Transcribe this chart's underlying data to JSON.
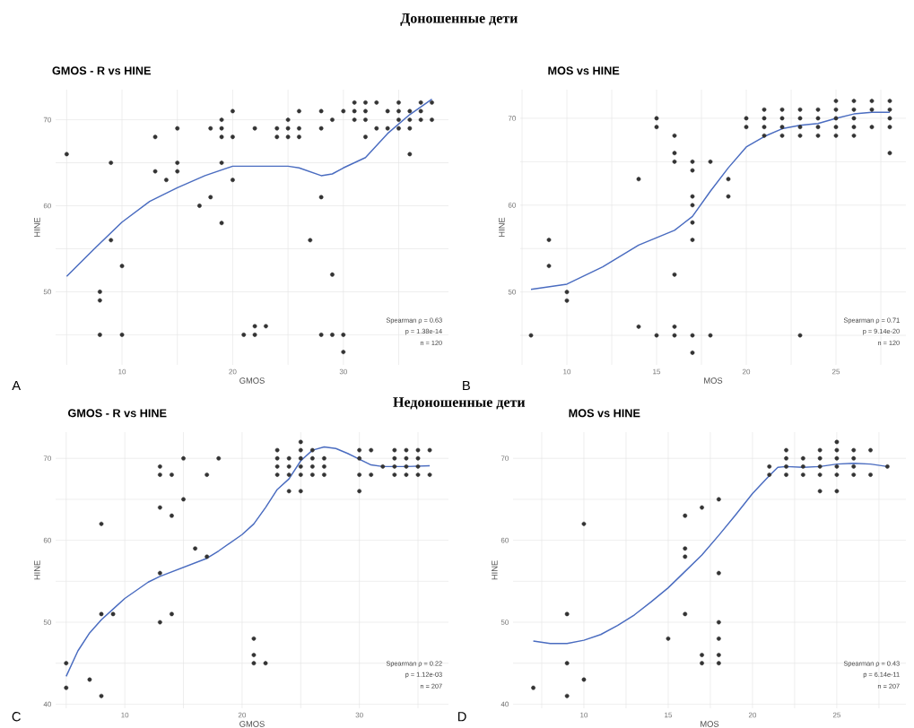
{
  "chart_data": [
    {
      "type": "scatter",
      "title": "GMOS - R    vs HINE",
      "xlabel": "GMOS",
      "ylabel": "HINE",
      "xlim": [
        4,
        39.5
      ],
      "ylim": [
        41.5,
        73.5
      ],
      "xticks": [
        {
          "value": 5,
          "label": null
        },
        10,
        {
          "value": 15,
          "label": null
        },
        20,
        {
          "value": 25,
          "label": null
        },
        30,
        {
          "value": 35,
          "label": null
        }
      ],
      "yticks": [
        {
          "value": 45,
          "label": null
        },
        50,
        {
          "value": 55,
          "label": null
        },
        60,
        {
          "value": 65,
          "label": null
        },
        70
      ],
      "grid": true,
      "annotations": [
        "A",
        "Spearman ρ = 0.63",
        "p = 1.38e-14",
        "n = 120",
        "Доношенные дети"
      ],
      "series": [
        {
          "marker": "circle",
          "color": "#333333",
          "x": [
            5,
            9,
            9,
            8,
            8,
            8,
            10,
            10,
            13,
            13,
            14,
            15,
            15,
            15,
            17,
            18,
            18,
            19,
            19,
            19,
            19,
            19,
            20,
            20,
            20,
            21,
            22,
            22,
            22,
            23,
            24,
            24,
            25,
            25,
            25,
            26,
            26,
            26,
            27,
            28,
            28,
            28,
            28,
            29,
            29,
            29,
            30,
            30,
            30,
            31,
            31,
            31,
            32,
            32,
            32,
            32,
            33,
            33,
            34,
            34,
            35,
            35,
            35,
            35,
            36,
            36,
            36,
            36,
            37,
            37,
            37,
            38,
            38
          ],
          "values": [
            66,
            65,
            56,
            50,
            49,
            45,
            53,
            45,
            68,
            64,
            63,
            69,
            65,
            64,
            60,
            69,
            61,
            70,
            69,
            68,
            65,
            58,
            71,
            68,
            63,
            45,
            69,
            46,
            45,
            46,
            69,
            68,
            70,
            69,
            68,
            71,
            69,
            68,
            56,
            71,
            69,
            61,
            45,
            70,
            52,
            45,
            71,
            45,
            43,
            72,
            71,
            70,
            72,
            71,
            70,
            68,
            72,
            69,
            71,
            69,
            72,
            71,
            70,
            69,
            71,
            70,
            69,
            66,
            72,
            71,
            70,
            72,
            70
          ]
        },
        {
          "type": "line",
          "marker": "none",
          "line_style": "solid",
          "color": "#4a6cc0",
          "x": [
            5,
            7.5,
            10,
            12.5,
            15,
            17.5,
            20,
            25,
            26,
            28,
            29,
            30,
            32,
            34,
            36,
            38
          ],
          "values": [
            51.8,
            55,
            58.1,
            60.5,
            62.1,
            63.5,
            64.6,
            64.6,
            64.4,
            63.5,
            63.7,
            64.4,
            65.6,
            68.4,
            70.6,
            72.4
          ]
        }
      ]
    },
    {
      "type": "scatter",
      "title": "MOS vs HINE",
      "xlabel": "MOS",
      "ylabel": "HINE",
      "xlim": [
        7.4,
        28.9
      ],
      "ylim": [
        41.6,
        73.3
      ],
      "xticks": [
        {
          "value": 7.5,
          "label": null
        },
        10,
        {
          "value": 12.5,
          "label": null
        },
        15,
        {
          "value": 17.5,
          "label": null
        },
        20,
        {
          "value": 22.5,
          "label": null
        },
        25,
        {
          "value": 27.5,
          "label": null
        }
      ],
      "yticks": [
        {
          "value": 45,
          "label": null
        },
        50,
        {
          "value": 55,
          "label": null
        },
        60,
        {
          "value": 65,
          "label": null
        },
        70
      ],
      "grid": true,
      "annotations": [
        "B",
        "Spearman ρ = 0.71",
        "p = 9.14e-20",
        "n = 120"
      ],
      "series": [
        {
          "marker": "circle",
          "color": "#333333",
          "x": [
            8,
            9,
            9,
            10,
            10,
            14,
            14,
            15,
            15,
            15,
            16,
            16,
            16,
            16,
            16,
            16,
            17,
            17,
            17,
            17,
            17,
            17,
            17,
            17,
            18,
            18,
            19,
            19,
            20,
            20,
            21,
            21,
            21,
            21,
            22,
            22,
            22,
            22,
            23,
            23,
            23,
            23,
            23,
            24,
            24,
            24,
            24,
            25,
            25,
            25,
            25,
            25,
            26,
            26,
            26,
            26,
            26,
            27,
            27,
            27,
            28,
            28,
            28,
            28,
            28
          ],
          "values": [
            45,
            56,
            53,
            50,
            49,
            63,
            46,
            70,
            69,
            45,
            68,
            66,
            65,
            52,
            46,
            45,
            65,
            64,
            61,
            60,
            58,
            56,
            45,
            43,
            65,
            45,
            63,
            61,
            70,
            69,
            71,
            70,
            69,
            68,
            71,
            70,
            69,
            68,
            71,
            70,
            69,
            68,
            45,
            71,
            70,
            69,
            68,
            72,
            71,
            70,
            69,
            68,
            72,
            71,
            70,
            69,
            68,
            72,
            71,
            69,
            72,
            71,
            70,
            69,
            66
          ]
        },
        {
          "type": "line",
          "marker": "none",
          "line_style": "solid",
          "color": "#4a6cc0",
          "x": [
            8,
            10,
            12,
            14,
            16,
            17,
            18,
            19,
            20,
            21,
            22,
            23,
            24,
            25,
            26,
            27,
            28
          ],
          "values": [
            50.3,
            50.9,
            52.9,
            55.4,
            57.1,
            58.7,
            61.6,
            64.3,
            66.7,
            67.9,
            68.8,
            69.2,
            69.4,
            70.0,
            70.5,
            70.7,
            70.7
          ]
        }
      ]
    },
    {
      "type": "scatter",
      "title": "GMOS - R    vs HINE",
      "xlabel": "GMOS",
      "ylabel": "HINE",
      "xlim": [
        4.1,
        37.6
      ],
      "ylim": [
        39.5,
        73.2
      ],
      "xticks": [
        {
          "value": 5,
          "label": null
        },
        10,
        {
          "value": 15,
          "label": null
        },
        20,
        {
          "value": 25,
          "label": null
        },
        30,
        {
          "value": 35,
          "label": null
        }
      ],
      "yticks": [
        40,
        {
          "value": 45,
          "label": null
        },
        50,
        {
          "value": 55,
          "label": null
        },
        60,
        {
          "value": 65,
          "label": null
        },
        70
      ],
      "grid": true,
      "annotations": [
        "C",
        "Spearman ρ = 0.22",
        "p = 1.12e-03",
        "n = 207",
        "Недоношенные дети"
      ],
      "series": [
        {
          "marker": "circle",
          "color": "#333333",
          "x": [
            5,
            5,
            7,
            8,
            8,
            8,
            9,
            13,
            13,
            13,
            13,
            13,
            14,
            14,
            14,
            15,
            15,
            16,
            17,
            17,
            18,
            21,
            21,
            21,
            22,
            23,
            23,
            23,
            23,
            24,
            24,
            24,
            24,
            25,
            25,
            25,
            25,
            25,
            25,
            26,
            26,
            26,
            26,
            27,
            27,
            27,
            30,
            30,
            30,
            30,
            31,
            31,
            32,
            33,
            33,
            33,
            33,
            34,
            34,
            34,
            34,
            35,
            35,
            35,
            35,
            36,
            36
          ],
          "values": [
            45,
            42,
            43,
            62,
            51,
            41,
            51,
            69,
            68,
            64,
            56,
            50,
            68,
            63,
            51,
            70,
            65,
            59,
            68,
            58,
            70,
            48,
            46,
            45,
            45,
            71,
            70,
            69,
            68,
            70,
            69,
            68,
            66,
            72,
            71,
            70,
            69,
            68,
            66,
            71,
            70,
            69,
            68,
            70,
            69,
            68,
            71,
            70,
            68,
            66,
            71,
            68,
            69,
            71,
            70,
            69,
            68,
            71,
            70,
            69,
            68,
            71,
            70,
            69,
            68,
            71,
            68
          ]
        },
        {
          "type": "line",
          "marker": "none",
          "line_style": "solid",
          "color": "#4a6cc0",
          "x": [
            5,
            6,
            7,
            8,
            9,
            10,
            12,
            13,
            15,
            17,
            18,
            20,
            21,
            22,
            23,
            24,
            25,
            26,
            27,
            28,
            29,
            30,
            31,
            32,
            34,
            36
          ],
          "values": [
            43.4,
            46.5,
            48.7,
            50.3,
            51.6,
            52.9,
            54.9,
            55.6,
            56.7,
            57.8,
            58.7,
            60.7,
            62.0,
            64.0,
            66.2,
            67.5,
            69.7,
            71.0,
            71.4,
            71.2,
            70.6,
            69.9,
            69.2,
            69.0,
            69.0,
            69.1
          ]
        }
      ]
    },
    {
      "type": "scatter",
      "title": "MOS vs HINE",
      "xlabel": "MOS",
      "ylabel": "HINE",
      "xlim": [
        5.8,
        29.1
      ],
      "ylim": [
        39.5,
        73.2
      ],
      "xticks": [
        {
          "value": 7.5,
          "label": null
        },
        10,
        {
          "value": 12.5,
          "label": null
        },
        15,
        {
          "value": 17.5,
          "label": null
        },
        20,
        {
          "value": 22.5,
          "label": null
        },
        25,
        {
          "value": 27.5,
          "label": null
        }
      ],
      "yticks": [
        40,
        {
          "value": 45,
          "label": null
        },
        50,
        {
          "value": 55,
          "label": null
        },
        60,
        {
          "value": 65,
          "label": null
        },
        70
      ],
      "grid": true,
      "annotations": [
        "D",
        "Spearman ρ = 0.43",
        "p = 6.14e-11",
        "n = 207"
      ],
      "series": [
        {
          "marker": "circle",
          "color": "#333333",
          "x": [
            7,
            9,
            9,
            9,
            10,
            10,
            15,
            16,
            16,
            16,
            16,
            17,
            17,
            17,
            18,
            18,
            18,
            18,
            18,
            18,
            21,
            21,
            22,
            22,
            22,
            22,
            23,
            23,
            23,
            24,
            24,
            24,
            24,
            24,
            25,
            25,
            25,
            25,
            25,
            25,
            26,
            26,
            26,
            26,
            27,
            27,
            28
          ],
          "values": [
            42,
            51,
            45,
            41,
            62,
            43,
            48,
            63,
            59,
            58,
            51,
            64,
            46,
            45,
            65,
            56,
            50,
            48,
            46,
            45,
            69,
            68,
            71,
            70,
            69,
            68,
            70,
            69,
            68,
            71,
            70,
            69,
            68,
            66,
            72,
            71,
            70,
            69,
            68,
            66,
            71,
            70,
            69,
            68,
            71,
            68,
            69
          ]
        },
        {
          "type": "line",
          "marker": "none",
          "line_style": "solid",
          "color": "#4a6cc0",
          "x": [
            7,
            8,
            9,
            10,
            11,
            12,
            13,
            14,
            15,
            16,
            17,
            18,
            19,
            20,
            21,
            21.5,
            22,
            23,
            24,
            25,
            26,
            27,
            28
          ],
          "values": [
            47.7,
            47.4,
            47.4,
            47.8,
            48.5,
            49.6,
            50.9,
            52.5,
            54.2,
            56.2,
            58.2,
            60.6,
            63.1,
            65.7,
            67.9,
            68.9,
            69.0,
            68.9,
            69.0,
            69.3,
            69.4,
            69.3,
            69.0
          ]
        }
      ]
    }
  ]
}
